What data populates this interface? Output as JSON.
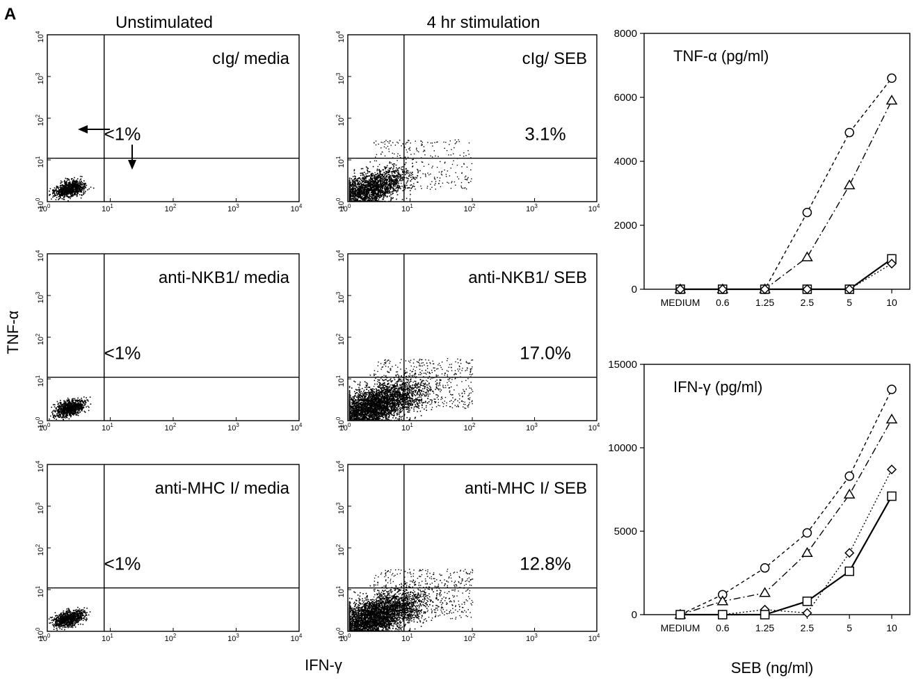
{
  "panel_letter": "A",
  "flow": {
    "col_titles": [
      "Unstimulated",
      "4 hr stimulation"
    ],
    "y_axis_title": "TNF-α",
    "x_axis_title": "IFN-γ",
    "decade_labels": [
      "10",
      "10",
      "10",
      "10",
      "10"
    ],
    "decade_exponents": [
      "0",
      "1",
      "2",
      "3",
      "4"
    ],
    "arrow_color": "#000000",
    "dot_color": "#000000"
  },
  "line_x_axis_title": "SEB (ng/ml)",
  "chart_data": [
    {
      "type": "scatter",
      "scale": "log",
      "xlim": [
        1,
        10000
      ],
      "ylim": [
        1,
        10000
      ],
      "label": "cIg/ media",
      "quadrant_pct": "<1%",
      "gate_x": 8,
      "gate_y": 11,
      "density": "sparse",
      "arrows": true
    },
    {
      "type": "scatter",
      "scale": "log",
      "xlim": [
        1,
        10000
      ],
      "ylim": [
        1,
        10000
      ],
      "label": "cIg/ SEB",
      "quadrant_pct": "3.1%",
      "gate_x": 8,
      "gate_y": 11,
      "density": "medium"
    },
    {
      "type": "scatter",
      "scale": "log",
      "xlim": [
        1,
        10000
      ],
      "ylim": [
        1,
        10000
      ],
      "label": "anti-NKB1/ media",
      "quadrant_pct": "<1%",
      "gate_x": 8,
      "gate_y": 11,
      "density": "sparse"
    },
    {
      "type": "scatter",
      "scale": "log",
      "xlim": [
        1,
        10000
      ],
      "ylim": [
        1,
        10000
      ],
      "label": "anti-NKB1/ SEB",
      "quadrant_pct": "17.0%",
      "gate_x": 8,
      "gate_y": 11,
      "density": "heavy"
    },
    {
      "type": "scatter",
      "scale": "log",
      "xlim": [
        1,
        10000
      ],
      "ylim": [
        1,
        10000
      ],
      "label": "anti-MHC I/ media",
      "quadrant_pct": "<1%",
      "gate_x": 8,
      "gate_y": 11,
      "density": "sparse"
    },
    {
      "type": "scatter",
      "scale": "log",
      "xlim": [
        1,
        10000
      ],
      "ylim": [
        1,
        10000
      ],
      "label": "anti-MHC I/ SEB",
      "quadrant_pct": "12.8%",
      "gate_x": 8,
      "gate_y": 11,
      "density": "heavy"
    },
    {
      "type": "line",
      "title": "TNF-α  (pg/ml)",
      "categories": [
        "MEDIUM",
        "0.6",
        "1.25",
        "2.5",
        "5",
        "10"
      ],
      "ylim": [
        0,
        8000
      ],
      "yticks": [
        0,
        2000,
        4000,
        6000,
        8000
      ],
      "series": [
        {
          "marker": "circle",
          "dash": "dashed",
          "values": [
            0,
            0,
            0,
            2400,
            4900,
            6600
          ]
        },
        {
          "marker": "triangle",
          "dash": "dashdot",
          "values": [
            0,
            0,
            0,
            1000,
            3250,
            5900
          ]
        },
        {
          "marker": "square",
          "dash": "solid",
          "values": [
            0,
            0,
            0,
            0,
            0,
            950
          ]
        },
        {
          "marker": "diamond",
          "dash": "dotted",
          "values": [
            0,
            0,
            0,
            0,
            0,
            800
          ]
        }
      ]
    },
    {
      "type": "line",
      "title": "IFN-γ  (pg/ml)",
      "categories": [
        "MEDIUM",
        "0.6",
        "1.25",
        "2.5",
        "5",
        "10"
      ],
      "ylim": [
        0,
        15000
      ],
      "yticks": [
        0,
        5000,
        10000,
        15000
      ],
      "series": [
        {
          "marker": "circle",
          "dash": "dashed",
          "values": [
            0,
            1200,
            2800,
            4900,
            8300,
            13500
          ]
        },
        {
          "marker": "triangle",
          "dash": "dashdot",
          "values": [
            0,
            800,
            1300,
            3700,
            7200,
            11700
          ]
        },
        {
          "marker": "diamond",
          "dash": "dotted",
          "values": [
            0,
            0,
            300,
            100,
            3700,
            8700
          ]
        },
        {
          "marker": "square",
          "dash": "solid",
          "values": [
            0,
            0,
            0,
            800,
            2600,
            7100
          ]
        }
      ]
    }
  ]
}
